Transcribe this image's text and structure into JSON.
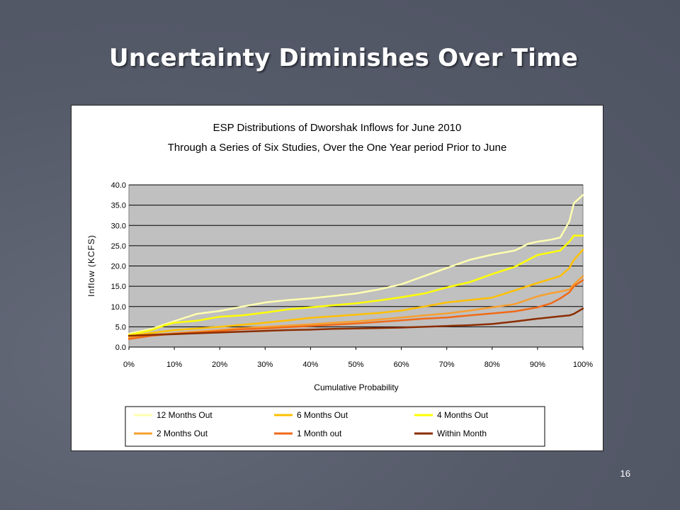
{
  "slide": {
    "title": "Uncertainty Diminishes Over Time",
    "page_number": "16"
  },
  "colors": {
    "background": "#5a5f6e",
    "plot_area": "#c0c0c0"
  },
  "chart_data": {
    "type": "line",
    "title": "ESP Distributions of Dworshak Inflows for June 2010",
    "subtitle": "Through a Series of Six Studies, Over the One Year period Prior to June",
    "xlabel": "Cumulative Probability",
    "ylabel": "Inflow (KCFS)",
    "xlim": [
      0,
      100
    ],
    "ylim": [
      0,
      40
    ],
    "x_ticks": [
      "0%",
      "10%",
      "20%",
      "30%",
      "40%",
      "50%",
      "60%",
      "70%",
      "80%",
      "90%",
      "100%"
    ],
    "y_ticks": [
      "0.0",
      "5.0",
      "10.0",
      "15.0",
      "20.0",
      "25.0",
      "30.0",
      "35.0",
      "40.0"
    ],
    "grid": "horizontal",
    "legend_position": "bottom",
    "series": [
      {
        "name": "12 Months Out",
        "color": "#ffffb0",
        "x": [
          0,
          5,
          10,
          15,
          20,
          25,
          30,
          35,
          40,
          45,
          50,
          55,
          60,
          65,
          70,
          75,
          80,
          85,
          88,
          90,
          93,
          95,
          97,
          98,
          100
        ],
        "y": [
          3.3,
          4.5,
          6.4,
          8.2,
          8.9,
          10.0,
          11.0,
          11.6,
          12.0,
          12.6,
          13.2,
          14.2,
          15.5,
          17.5,
          19.5,
          21.5,
          22.8,
          23.8,
          25.5,
          26.0,
          26.5,
          27.0,
          31.0,
          35.5,
          37.5
        ]
      },
      {
        "name": "6 Months Out",
        "color": "#ffc000",
        "x": [
          0,
          5,
          10,
          15,
          20,
          25,
          30,
          35,
          40,
          45,
          50,
          55,
          60,
          65,
          70,
          75,
          80,
          85,
          90,
          95,
          97,
          98,
          100
        ],
        "y": [
          2.7,
          3.5,
          4.2,
          4.6,
          5.0,
          5.5,
          6.0,
          6.6,
          7.2,
          7.6,
          8.0,
          8.4,
          9.0,
          10.0,
          11.0,
          11.6,
          12.2,
          14.0,
          15.8,
          17.5,
          19.5,
          21.5,
          24.0
        ]
      },
      {
        "name": "4 Months Out",
        "color": "#ffff00",
        "x": [
          0,
          5,
          8,
          10,
          15,
          20,
          25,
          30,
          35,
          40,
          45,
          50,
          55,
          60,
          65,
          70,
          75,
          80,
          85,
          90,
          95,
          97,
          98,
          100
        ],
        "y": [
          3.0,
          4.2,
          5.4,
          6.0,
          6.5,
          7.5,
          7.8,
          8.5,
          9.3,
          9.8,
          10.3,
          10.8,
          11.5,
          12.3,
          13.2,
          14.7,
          16.0,
          18.0,
          19.8,
          22.7,
          23.8,
          26.0,
          27.5,
          27.5
        ]
      },
      {
        "name": "2 Months Out",
        "color": "#f7a030",
        "x": [
          0,
          5,
          10,
          15,
          20,
          25,
          30,
          35,
          40,
          45,
          50,
          55,
          60,
          65,
          70,
          75,
          80,
          85,
          90,
          93,
          95,
          97,
          98,
          100
        ],
        "y": [
          2.3,
          3.0,
          3.4,
          3.8,
          4.2,
          4.7,
          5.0,
          5.3,
          5.6,
          6.0,
          6.3,
          6.8,
          7.3,
          7.8,
          8.3,
          9.0,
          9.8,
          10.6,
          12.5,
          13.3,
          13.7,
          14.2,
          15.5,
          17.5
        ]
      },
      {
        "name": "1 Month out",
        "color": "#f06a18",
        "x": [
          0,
          5,
          10,
          15,
          20,
          25,
          30,
          35,
          40,
          45,
          50,
          55,
          60,
          65,
          70,
          75,
          80,
          85,
          90,
          93,
          95,
          97,
          98,
          100
        ],
        "y": [
          2.0,
          2.8,
          3.3,
          3.6,
          4.0,
          4.4,
          4.6,
          4.9,
          5.2,
          5.5,
          5.8,
          6.2,
          6.6,
          7.0,
          7.3,
          7.8,
          8.3,
          8.8,
          9.8,
          10.8,
          12.0,
          13.5,
          15.0,
          16.5
        ]
      },
      {
        "name": "Within Month",
        "color": "#8b2d00",
        "x": [
          0,
          5,
          10,
          15,
          20,
          25,
          30,
          35,
          40,
          45,
          50,
          55,
          60,
          65,
          70,
          75,
          80,
          85,
          90,
          95,
          97,
          98,
          100
        ],
        "y": [
          2.8,
          3.0,
          3.2,
          3.4,
          3.6,
          3.8,
          4.0,
          4.2,
          4.3,
          4.5,
          4.6,
          4.7,
          4.8,
          5.0,
          5.2,
          5.4,
          5.7,
          6.3,
          7.0,
          7.6,
          7.8,
          8.2,
          9.5
        ]
      }
    ]
  }
}
